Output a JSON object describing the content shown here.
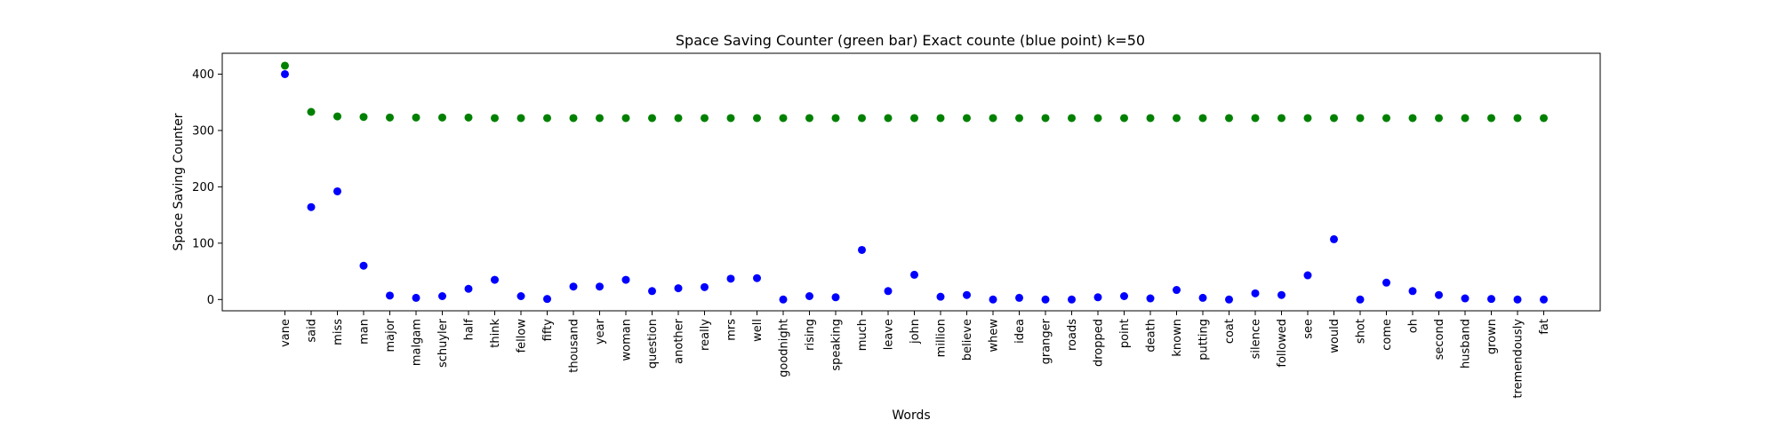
{
  "chart_data": {
    "type": "scatter",
    "title": "Space Saving Counter (green bar)  Exact counte (blue point) k=50",
    "xlabel": "Words",
    "ylabel": "Space Saving Counter",
    "ylim": [
      -20,
      437
    ],
    "yticks": [
      0,
      100,
      200,
      300,
      400
    ],
    "grid": false,
    "categories": [
      "vane",
      "said",
      "miss",
      "man",
      "major",
      "malgam",
      "schuyler",
      "half",
      "think",
      "fellow",
      "fifty",
      "thousand",
      "year",
      "woman",
      "question",
      "another",
      "really",
      "mrs",
      "well",
      "goodnight",
      "rising",
      "speaking",
      "much",
      "leave",
      "john",
      "million",
      "believe",
      "whew",
      "idea",
      "granger",
      "roads",
      "dropped",
      "point",
      "death",
      "known",
      "putting",
      "coat",
      "silence",
      "followed",
      "see",
      "would",
      "shot",
      "come",
      "oh",
      "second",
      "husband",
      "grown",
      "tremendously",
      "fat"
    ],
    "series": [
      {
        "color": "#008000",
        "values": [
          415,
          333,
          325,
          324,
          323,
          323,
          323,
          323,
          322,
          322,
          322,
          322,
          322,
          322,
          322,
          322,
          322,
          322,
          322,
          322,
          322,
          322,
          322,
          322,
          322,
          322,
          322,
          322,
          322,
          322,
          322,
          322,
          322,
          322,
          322,
          322,
          322,
          322,
          322,
          322,
          322,
          322,
          322,
          322,
          322,
          322,
          322,
          322,
          322
        ]
      },
      {
        "color": "#0000ff",
        "values": [
          400,
          164,
          192,
          60,
          7,
          3,
          6,
          19,
          35,
          6,
          1,
          23,
          23,
          35,
          15,
          20,
          22,
          37,
          38,
          0,
          6,
          4,
          88,
          15,
          44,
          5,
          8,
          0,
          3,
          0,
          0,
          4,
          6,
          2,
          17,
          3,
          0,
          11,
          8,
          43,
          107,
          0,
          30,
          15,
          8,
          2,
          1,
          0,
          0
        ]
      }
    ]
  }
}
